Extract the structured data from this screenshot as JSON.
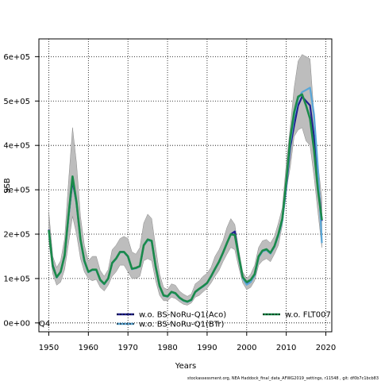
{
  "chart_data": {
    "type": "line",
    "xlabel": "Years",
    "ylabel": "SSB",
    "xlim": [
      1947.5,
      2021.5
    ],
    "ylim": [
      -20000,
      640000
    ],
    "x_ticks": [
      1950,
      1960,
      1970,
      1980,
      1990,
      2000,
      2010,
      2020
    ],
    "x_tick_labels": [
      "1950",
      "1960",
      "1970",
      "1980",
      "1990",
      "2000",
      "2010",
      "2020"
    ],
    "y_ticks": [
      0,
      100000,
      200000,
      300000,
      400000,
      500000,
      600000
    ],
    "y_tick_labels": [
      "0e+00",
      "1e+05",
      "2e+05",
      "3e+05",
      "4e+05",
      "5e+05",
      "6e+05"
    ],
    "grid": true,
    "corner_label": "Q4",
    "legend_placement": "bottom",
    "credit": "stockassessment.org, NEA Haddock_final_data_AFWG2019_settings, r11548 , git: df0b7c1bcb83",
    "band": {
      "years": [
        1950,
        1951,
        1952,
        1953,
        1954,
        1955,
        1956,
        1957,
        1958,
        1959,
        1960,
        1961,
        1962,
        1963,
        1964,
        1965,
        1966,
        1967,
        1968,
        1969,
        1970,
        1971,
        1972,
        1973,
        1974,
        1975,
        1976,
        1977,
        1978,
        1979,
        1980,
        1981,
        1982,
        1983,
        1984,
        1985,
        1986,
        1987,
        1988,
        1989,
        1990,
        1991,
        1992,
        1993,
        1994,
        1995,
        1996,
        1997,
        1998,
        1999,
        2000,
        2001,
        2002,
        2003,
        2004,
        2005,
        2006,
        2007,
        2008,
        2009,
        2010,
        2011,
        2012,
        2013,
        2014,
        2015,
        2016,
        2017,
        2018,
        2019
      ],
      "lower": [
        185000,
        110000,
        85000,
        92000,
        120000,
        180000,
        240000,
        200000,
        145000,
        115000,
        100000,
        95000,
        98000,
        80000,
        72000,
        85000,
        105000,
        115000,
        130000,
        130000,
        115000,
        100000,
        100000,
        105000,
        140000,
        145000,
        140000,
        95000,
        62000,
        50000,
        50000,
        58000,
        55000,
        48000,
        42000,
        40000,
        45000,
        58000,
        62000,
        70000,
        78000,
        90000,
        105000,
        118000,
        138000,
        155000,
        170000,
        165000,
        125000,
        90000,
        75000,
        80000,
        95000,
        130000,
        140000,
        145000,
        138000,
        155000,
        175000,
        220000,
        300000,
        350000,
        420000,
        435000,
        440000,
        410000,
        400000,
        330000,
        250000,
        170000
      ],
      "upper": [
        250000,
        150000,
        125000,
        140000,
        190000,
        320000,
        440000,
        360000,
        240000,
        175000,
        140000,
        150000,
        150000,
        118000,
        105000,
        120000,
        165000,
        175000,
        190000,
        195000,
        190000,
        160000,
        155000,
        170000,
        225000,
        245000,
        235000,
        170000,
        110000,
        80000,
        75000,
        88000,
        85000,
        72000,
        65000,
        60000,
        65000,
        88000,
        95000,
        105000,
        112000,
        125000,
        150000,
        165000,
        185000,
        215000,
        235000,
        222000,
        165000,
        115000,
        100000,
        110000,
        130000,
        170000,
        185000,
        188000,
        180000,
        195000,
        225000,
        260000,
        360000,
        440000,
        530000,
        590000,
        605000,
        600000,
        595000,
        470000,
        360000,
        280000
      ]
    },
    "series": [
      {
        "name": "w.o. BS-NoRu-Q1(Aco)",
        "color": "#1f1f8f",
        "values": [
          210000,
          130000,
          103000,
          115000,
          152000,
          240000,
          320000,
          270000,
          188000,
          140000,
          115000,
          120000,
          120000,
          97000,
          88000,
          100000,
          135000,
          145000,
          160000,
          160000,
          150000,
          122000,
          124000,
          128000,
          175000,
          188000,
          185000,
          127000,
          83000,
          62000,
          60000,
          70000,
          67000,
          57000,
          51000,
          48000,
          52000,
          70000,
          77000,
          83000,
          90000,
          105000,
          122000,
          138000,
          158000,
          180000,
          200000,
          206000,
          150000,
          102000,
          87000,
          93000,
          108000,
          148000,
          162000,
          165000,
          157000,
          172000,
          198000,
          232000,
          305000,
          395000,
          445000,
          490000,
          510000,
          500000,
          490000,
          420000,
          320000,
          230000
        ]
      },
      {
        "name": "w.o. BS-NoRu-Q1(BTr)",
        "color": "#5aa7d8",
        "values": [
          208000,
          128000,
          102000,
          114000,
          150000,
          238000,
          328000,
          268000,
          186000,
          138000,
          114000,
          119000,
          119000,
          96000,
          87000,
          99000,
          134000,
          144000,
          159000,
          159000,
          149000,
          121000,
          123000,
          127000,
          174000,
          186000,
          184000,
          126000,
          82000,
          61000,
          59000,
          69000,
          66000,
          56000,
          50000,
          47000,
          51000,
          69000,
          76000,
          82000,
          89000,
          104000,
          121000,
          137000,
          157000,
          179000,
          199000,
          198000,
          149000,
          101000,
          86000,
          92000,
          107000,
          147000,
          161000,
          164000,
          156000,
          171000,
          197000,
          230000,
          310000,
          405000,
          465000,
          505000,
          520000,
          525000,
          530000,
          470000,
          350000,
          180000
        ]
      },
      {
        "name": "w.o. FLT007",
        "color": "#1a8a4a",
        "values": [
          209000,
          128000,
          103000,
          115000,
          152000,
          245000,
          330000,
          272000,
          188000,
          140000,
          115000,
          120000,
          120000,
          97000,
          88000,
          100000,
          135000,
          145000,
          160000,
          160000,
          150000,
          122000,
          124000,
          128000,
          175000,
          188000,
          185000,
          127000,
          83000,
          62000,
          60000,
          70000,
          67000,
          57000,
          51000,
          48000,
          52000,
          70000,
          77000,
          83000,
          90000,
          105000,
          122000,
          138000,
          158000,
          180000,
          200000,
          198000,
          150000,
          103000,
          92000,
          97000,
          110000,
          150000,
          163000,
          166000,
          158000,
          173000,
          200000,
          235000,
          320000,
          415000,
          475000,
          510000,
          515000,
          490000,
          460000,
          390000,
          300000,
          232000
        ]
      }
    ]
  }
}
